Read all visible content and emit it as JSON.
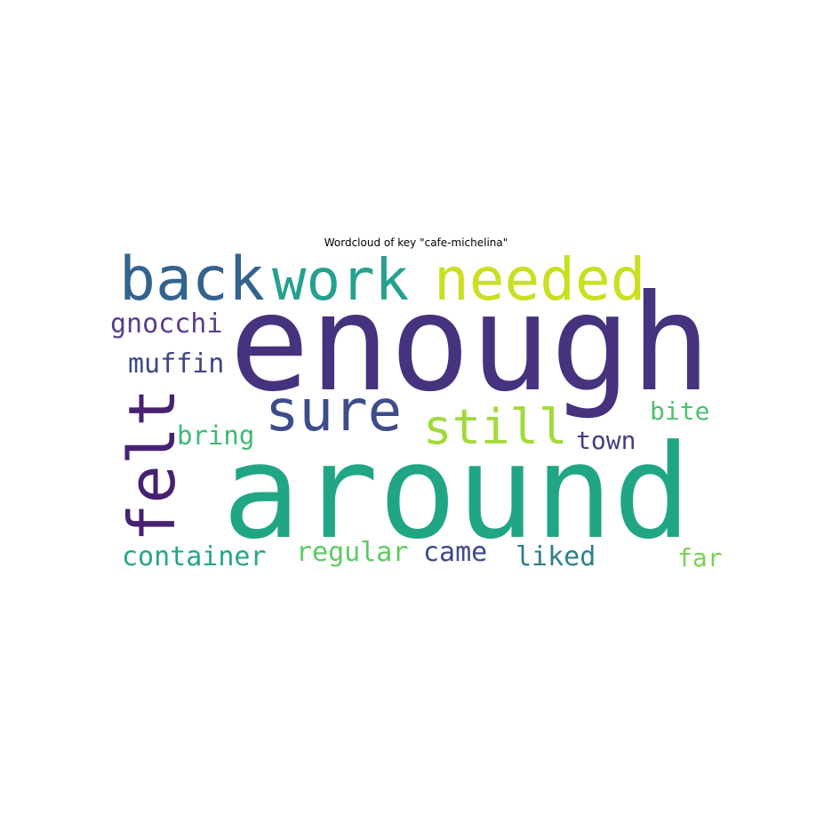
{
  "title": "Wordcloud of key \"cafe-michelina\"",
  "words": [
    {
      "text": "enough",
      "color": "#46327e"
    },
    {
      "text": "around",
      "color": "#21a685"
    },
    {
      "text": "back",
      "color": "#33638d"
    },
    {
      "text": "work",
      "color": "#25a18e"
    },
    {
      "text": "needed",
      "color": "#c8e020"
    },
    {
      "text": "sure",
      "color": "#3e4c8a"
    },
    {
      "text": "felt",
      "color": "#482173"
    },
    {
      "text": "still",
      "color": "#a0da39"
    },
    {
      "text": "gnocchi",
      "color": "#5b3c8c"
    },
    {
      "text": "muffin",
      "color": "#404688"
    },
    {
      "text": "bring",
      "color": "#3bbb75"
    },
    {
      "text": "bite",
      "color": "#4ac16d"
    },
    {
      "text": "town",
      "color": "#423f85"
    },
    {
      "text": "container",
      "color": "#25a58a"
    },
    {
      "text": "regular",
      "color": "#5ec962"
    },
    {
      "text": "came",
      "color": "#3f4889"
    },
    {
      "text": "liked",
      "color": "#2d7f8e"
    },
    {
      "text": "far",
      "color": "#7ad151"
    }
  ]
}
